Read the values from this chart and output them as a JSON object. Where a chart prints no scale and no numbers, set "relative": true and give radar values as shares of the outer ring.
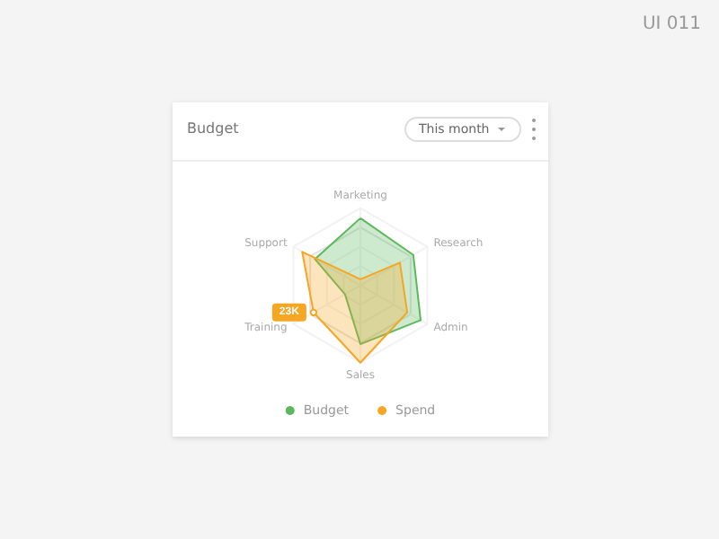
{
  "chart_data": {
    "type": "radar",
    "title": "Budget",
    "relative": true,
    "categories": [
      "Marketing",
      "Research",
      "Admin",
      "Sales",
      "Training",
      "Support"
    ],
    "series": [
      {
        "name": "Budget",
        "color": "#5cb85c",
        "values": [
          0.87,
          0.79,
          0.9,
          0.76,
          0.23,
          0.68
        ]
      },
      {
        "name": "Spend",
        "color": "#f5a623",
        "values": [
          0.08,
          0.59,
          0.7,
          1.0,
          0.7,
          0.87
        ]
      }
    ],
    "legend": "bottom",
    "grid": true,
    "annotations": [
      "This month",
      "UI 011",
      {
        "text": "23K",
        "x": "Training"
      }
    ]
  }
}
